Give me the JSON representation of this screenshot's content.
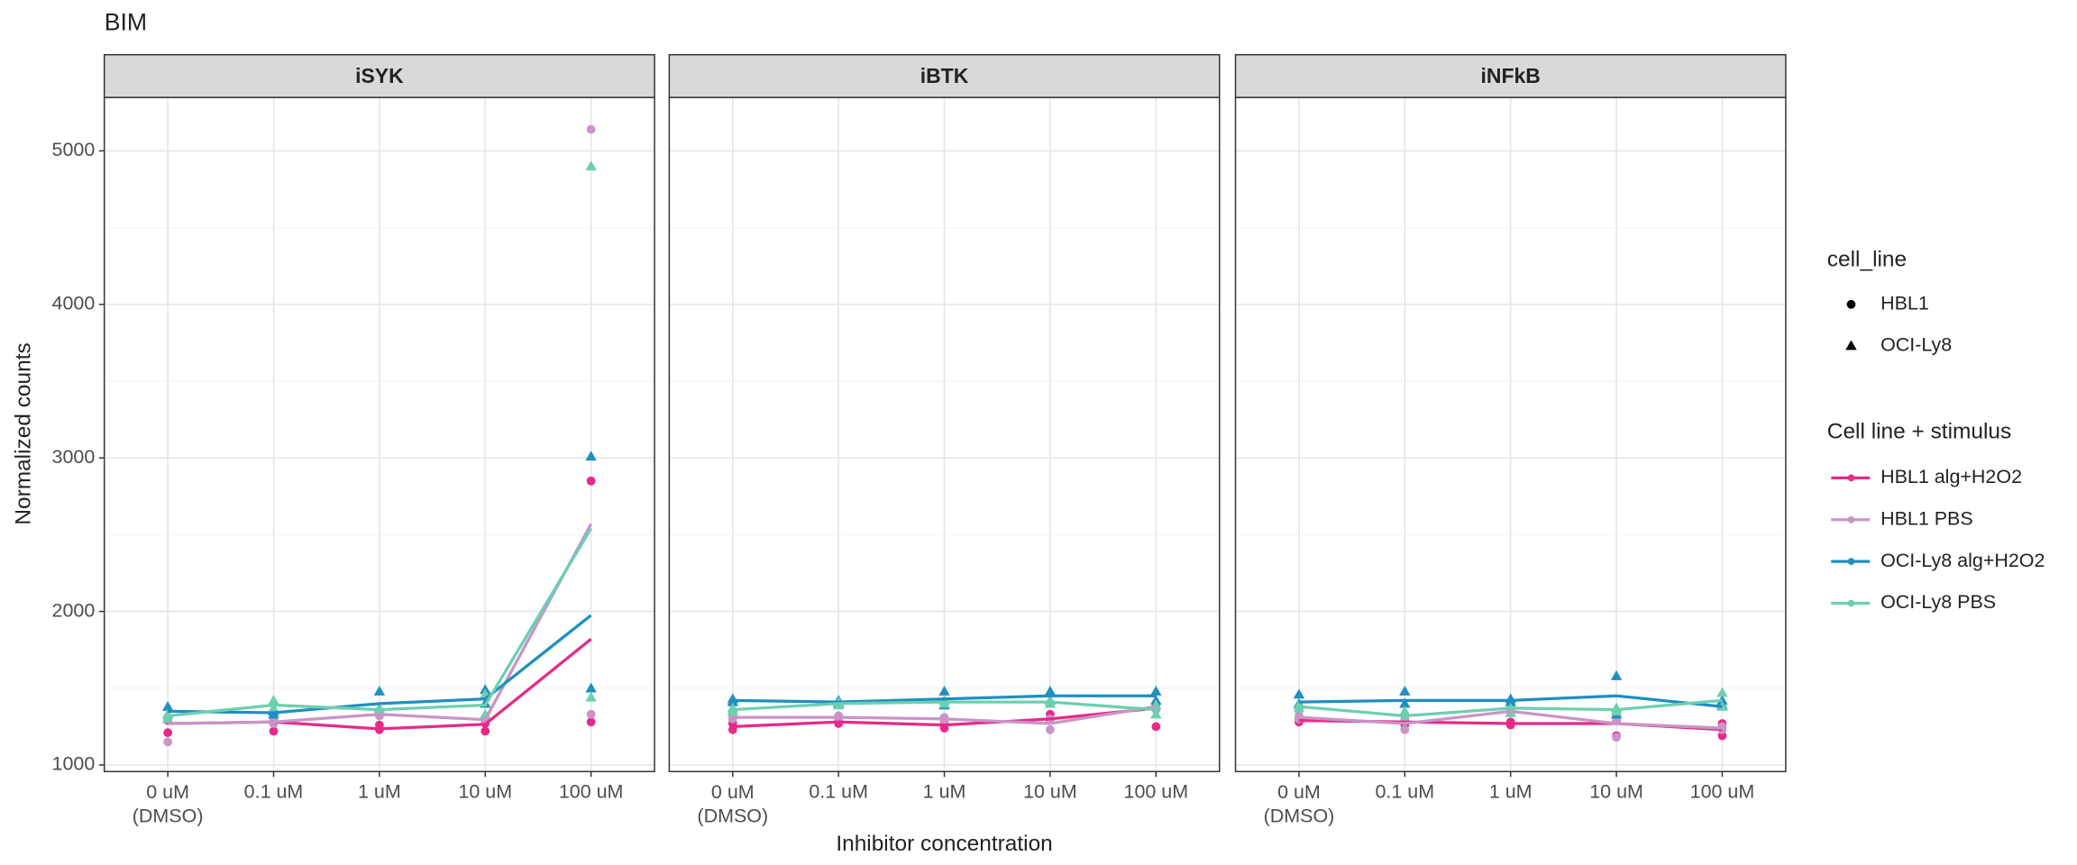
{
  "chart_data": {
    "type": "line",
    "title": "BIM",
    "x_label": "Inhibitor concentration",
    "y_label": "Normalized counts",
    "categories": [
      "0 uM\n(DMSO)",
      "0.1 uM",
      "1 uM",
      "10 uM",
      "100 uM"
    ],
    "ylim": [
      957,
      5348
    ],
    "yticks": [
      1000,
      2000,
      3000,
      4000,
      5000
    ],
    "grid": true,
    "shape_legend": {
      "title": "cell_line",
      "items": [
        {
          "label": "HBL1",
          "shape": "circle"
        },
        {
          "label": "OCI-Ly8",
          "shape": "triangle"
        }
      ]
    },
    "color_legend_title": "Cell line + stimulus",
    "series": [
      {
        "name": "HBL1 alg+H2O2",
        "color": "#e7298a",
        "shape": "circle"
      },
      {
        "name": "HBL1 PBS",
        "color": "#c994c7",
        "shape": "circle"
      },
      {
        "name": "OCI-Ly8 alg+H2O2",
        "color": "#1f8fbf",
        "shape": "triangle"
      },
      {
        "name": "OCI-Ly8 PBS",
        "color": "#6ccfb0",
        "shape": "triangle"
      }
    ],
    "panels": [
      {
        "title": "iSYK",
        "series": [
          {
            "values": [
              1270,
              1280,
              1235,
              1265,
              1820
            ],
            "points": [
              [
                1210,
                1290
              ],
              [
                1220,
                1270
              ],
              [
                1230,
                1260
              ],
              [
                1220,
                1270
              ],
              [
                1280,
                2850
              ]
            ]
          },
          {
            "values": [
              1270,
              1280,
              1330,
              1295,
              2570
            ],
            "points": [
              [
                1150,
                1300
              ],
              [
                1270,
                1300
              ],
              [
                1320,
                1340
              ],
              [
                1300,
                1290
              ],
              [
                1330,
                5140
              ]
            ]
          },
          {
            "values": [
              1350,
              1340,
              1400,
              1430,
              1975
            ],
            "points": [
              [
                1380,
                1330
              ],
              [
                1350,
                1330
              ],
              [
                1480,
                1350
              ],
              [
                1490,
                1400
              ],
              [
                1500,
                3010
              ]
            ]
          },
          {
            "values": [
              1320,
              1390,
              1360,
              1390,
              2540
            ],
            "points": [
              [
                1330,
                1300
              ],
              [
                1420,
                1370
              ],
              [
                1370,
                1350
              ],
              [
                1460,
                1330
              ],
              [
                1440,
                4900
              ]
            ]
          }
        ]
      },
      {
        "title": "iBTK",
        "series": [
          {
            "values": [
              1250,
              1280,
              1260,
              1300,
              1370
            ],
            "points": [
              [
                1230,
                1270
              ],
              [
                1270,
                1290
              ],
              [
                1240,
                1280
              ],
              [
                1290,
                1330
              ],
              [
                1250,
                1380
              ]
            ]
          },
          {
            "values": [
              1310,
              1310,
              1300,
              1270,
              1380
            ],
            "points": [
              [
                1300,
                1320
              ],
              [
                1300,
                1320
              ],
              [
                1290,
                1310
              ],
              [
                1230,
                1300
              ],
              [
                1360,
                1400
              ]
            ]
          },
          {
            "values": [
              1420,
              1410,
              1430,
              1450,
              1450
            ],
            "points": [
              [
                1430,
                1410
              ],
              [
                1420,
                1400
              ],
              [
                1480,
                1390
              ],
              [
                1480,
                1420
              ],
              [
                1480,
                1420
              ]
            ]
          },
          {
            "values": [
              1360,
              1400,
              1410,
              1410,
              1360
            ],
            "points": [
              [
                1350,
                1370
              ],
              [
                1410,
                1390
              ],
              [
                1420,
                1400
              ],
              [
                1400,
                1420
              ],
              [
                1330,
                1390
              ]
            ]
          }
        ]
      },
      {
        "title": "iNFkB",
        "series": [
          {
            "values": [
              1290,
              1280,
              1270,
              1270,
              1230
            ],
            "points": [
              [
                1280,
                1300
              ],
              [
                1260,
                1290
              ],
              [
                1260,
                1280
              ],
              [
                1190,
                1290
              ],
              [
                1190,
                1270
              ]
            ]
          },
          {
            "values": [
              1310,
              1270,
              1350,
              1270,
              1240
            ],
            "points": [
              [
                1300,
                1320
              ],
              [
                1230,
                1300
              ],
              [
                1340,
                1360
              ],
              [
                1180,
                1290
              ],
              [
                1230,
                1250
              ]
            ]
          },
          {
            "values": [
              1410,
              1420,
              1420,
              1450,
              1380
            ],
            "points": [
              [
                1460,
                1400
              ],
              [
                1480,
                1400
              ],
              [
                1430,
                1410
              ],
              [
                1580,
                1330
              ],
              [
                1390,
                1420
              ]
            ]
          },
          {
            "values": [
              1380,
              1320,
              1370,
              1360,
              1420
            ],
            "points": [
              [
                1370,
                1390
              ],
              [
                1350,
                1300
              ],
              [
                1370,
                1340
              ],
              [
                1370,
                1350
              ],
              [
                1470,
                1380
              ]
            ]
          }
        ]
      }
    ]
  }
}
